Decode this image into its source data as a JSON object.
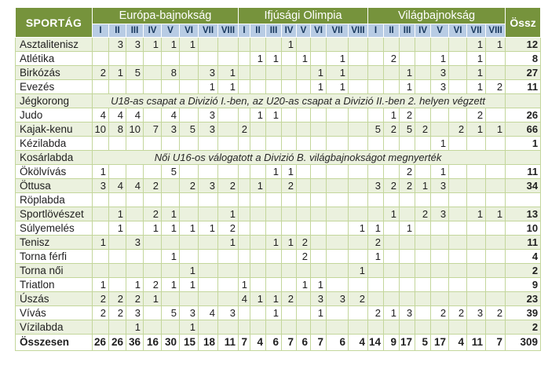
{
  "colors": {
    "header_green": "#76933c",
    "row_light_green": "#ebf1de",
    "row_white": "#ffffff",
    "grid_border": "#c3d69b",
    "subheader_blue": "#b8cce4",
    "subheader_text": "#17375d",
    "header_text": "#ffffff",
    "body_text": "#1f1f1f"
  },
  "table": {
    "title_col_header": "SPORTÁG",
    "total_col_header": "Össz",
    "groups": [
      {
        "label": "Európa-bajnokság",
        "cols": [
          "I",
          "II",
          "III",
          "IV",
          "V",
          "VI",
          "VII",
          "VIII"
        ]
      },
      {
        "label": "Ifjúsági Olimpia",
        "cols": [
          "I",
          "II",
          "III",
          "IV",
          "V",
          "VI",
          "VII",
          "VIII"
        ]
      },
      {
        "label": "Világbajnokság",
        "cols": [
          "I",
          "II",
          "III",
          "IV",
          "V",
          "VI",
          "VII",
          "VIII"
        ]
      }
    ],
    "rows": [
      {
        "sport": "Asztalitenisz",
        "eb": [
          "",
          "3",
          "3",
          "1",
          "1",
          "1",
          "",
          ""
        ],
        "io": [
          "",
          "",
          "",
          "1",
          "",
          "",
          "",
          ""
        ],
        "vb": [
          "",
          "",
          "",
          "",
          "",
          "",
          "1",
          "1"
        ],
        "total": "12"
      },
      {
        "sport": "Atlétika",
        "eb": [
          "",
          "",
          "",
          "",
          "",
          "",
          "",
          ""
        ],
        "io": [
          "",
          "1",
          "1",
          "",
          "1",
          "",
          "1",
          ""
        ],
        "vb": [
          "",
          "2",
          "",
          "",
          "1",
          "",
          "1",
          ""
        ],
        "total": "8"
      },
      {
        "sport": "Birkózás",
        "eb": [
          "2",
          "1",
          "5",
          "",
          "8",
          "",
          "3",
          "1"
        ],
        "io": [
          "",
          "",
          "",
          "",
          "",
          "1",
          "1",
          ""
        ],
        "vb": [
          "",
          "",
          "1",
          "",
          "3",
          "",
          "1",
          ""
        ],
        "total": "27"
      },
      {
        "sport": "Evezés",
        "eb": [
          "",
          "",
          "",
          "",
          "",
          "",
          "1",
          "1"
        ],
        "io": [
          "",
          "",
          "",
          "",
          "",
          "1",
          "1",
          ""
        ],
        "vb": [
          "",
          "",
          "1",
          "",
          "3",
          "",
          "1",
          "2"
        ],
        "total": "11"
      },
      {
        "sport": "Jégkorong",
        "note": "U18-as csapat a Divizió I.-ben, az U20-as csapat a Divizió II.-ben 2. helyen végzett",
        "total": ""
      },
      {
        "sport": "Judo",
        "eb": [
          "4",
          "4",
          "4",
          "",
          "4",
          "",
          "3",
          ""
        ],
        "io": [
          "",
          "1",
          "1",
          "",
          "",
          "",
          "",
          ""
        ],
        "vb": [
          "",
          "1",
          "2",
          "",
          "",
          "",
          "2",
          ""
        ],
        "total": "26"
      },
      {
        "sport": "Kajak-kenu",
        "eb": [
          "10",
          "8",
          "10",
          "7",
          "3",
          "5",
          "3",
          ""
        ],
        "io": [
          "2",
          "",
          "",
          "",
          "",
          "",
          "",
          ""
        ],
        "vb": [
          "5",
          "2",
          "5",
          "2",
          "",
          "2",
          "1",
          "1"
        ],
        "total": "66"
      },
      {
        "sport": "Kézilabda",
        "eb": [
          "",
          "",
          "",
          "",
          "",
          "",
          "",
          ""
        ],
        "io": [
          "",
          "",
          "",
          "",
          "",
          "",
          "",
          ""
        ],
        "vb": [
          "",
          "",
          "",
          "",
          "1",
          "",
          "",
          ""
        ],
        "total": "1"
      },
      {
        "sport": "Kosárlabda",
        "note": "Női U16-os válogatott a Divizió B. világbajnokságot megnyerték",
        "total": ""
      },
      {
        "sport": "Ökölvívás",
        "eb": [
          "1",
          "",
          "",
          "",
          "5",
          "",
          "",
          ""
        ],
        "io": [
          "",
          "",
          "1",
          "1",
          "",
          "",
          "",
          ""
        ],
        "vb": [
          "",
          "",
          "2",
          "",
          "1",
          "",
          "",
          ""
        ],
        "total": "11"
      },
      {
        "sport": "Öttusa",
        "eb": [
          "3",
          "4",
          "4",
          "2",
          "",
          "2",
          "3",
          "2"
        ],
        "io": [
          "",
          "1",
          "",
          "2",
          "",
          "",
          "",
          ""
        ],
        "vb": [
          "3",
          "2",
          "2",
          "1",
          "3",
          "",
          "",
          ""
        ],
        "total": "34"
      },
      {
        "sport": "Röplabda",
        "eb": [
          "",
          "",
          "",
          "",
          "",
          "",
          "",
          ""
        ],
        "io": [
          "",
          "",
          "",
          "",
          "",
          "",
          "",
          ""
        ],
        "vb": [
          "",
          "",
          "",
          "",
          "",
          "",
          "",
          ""
        ],
        "total": ""
      },
      {
        "sport": "Sportlövészet",
        "eb": [
          "",
          "1",
          "",
          "2",
          "1",
          "",
          "",
          "1"
        ],
        "io": [
          "",
          "",
          "",
          "",
          "",
          "",
          "",
          ""
        ],
        "vb": [
          "",
          "1",
          "",
          "2",
          "3",
          "",
          "1",
          "1"
        ],
        "total": "13"
      },
      {
        "sport": "Súlyemelés",
        "eb": [
          "",
          "1",
          "",
          "1",
          "1",
          "1",
          "1",
          "2"
        ],
        "io": [
          "",
          "",
          "",
          "",
          "",
          "",
          "",
          "1"
        ],
        "vb": [
          "1",
          "",
          "1",
          "",
          "",
          "",
          "",
          ""
        ],
        "total": "10"
      },
      {
        "sport": "Tenisz",
        "eb": [
          "1",
          "",
          "3",
          "",
          "",
          "",
          "",
          "1"
        ],
        "io": [
          "",
          "",
          "1",
          "1",
          "2",
          "",
          "",
          ""
        ],
        "vb": [
          "2",
          "",
          "",
          "",
          "",
          "",
          "",
          ""
        ],
        "total": "11"
      },
      {
        "sport": "Torna férfi",
        "eb": [
          "",
          "",
          "",
          "",
          "1",
          "",
          "",
          ""
        ],
        "io": [
          "",
          "",
          "",
          "",
          "2",
          "",
          "",
          ""
        ],
        "vb": [
          "1",
          "",
          "",
          "",
          "",
          "",
          "",
          ""
        ],
        "total": "4"
      },
      {
        "sport": "Torna női",
        "eb": [
          "",
          "",
          "",
          "",
          "",
          "1",
          "",
          ""
        ],
        "io": [
          "",
          "",
          "",
          "",
          "",
          "",
          "",
          "1"
        ],
        "vb": [
          "",
          "",
          "",
          "",
          "",
          "",
          "",
          ""
        ],
        "total": "2"
      },
      {
        "sport": "Triatlon",
        "eb": [
          "1",
          "",
          "1",
          "2",
          "1",
          "1",
          "",
          ""
        ],
        "io": [
          "1",
          "",
          "",
          "",
          "1",
          "1",
          "",
          ""
        ],
        "vb": [
          "",
          "",
          "",
          "",
          "",
          "",
          "",
          ""
        ],
        "total": "9"
      },
      {
        "sport": "Úszás",
        "eb": [
          "2",
          "2",
          "2",
          "1",
          "",
          "",
          "",
          ""
        ],
        "io": [
          "4",
          "1",
          "1",
          "2",
          "",
          "3",
          "3",
          "2"
        ],
        "vb": [
          "",
          "",
          "",
          "",
          "",
          "",
          "",
          ""
        ],
        "total": "23"
      },
      {
        "sport": "Vívás",
        "eb": [
          "2",
          "2",
          "3",
          "",
          "5",
          "3",
          "4",
          "3"
        ],
        "io": [
          "",
          "",
          "1",
          "",
          "",
          "1",
          "",
          ""
        ],
        "vb": [
          "2",
          "1",
          "3",
          "",
          "2",
          "2",
          "3",
          "2"
        ],
        "total": "39"
      },
      {
        "sport": "Vízilabda",
        "eb": [
          "",
          "",
          "1",
          "",
          "",
          "1",
          "",
          ""
        ],
        "io": [
          "",
          "",
          "",
          "",
          "",
          "",
          "",
          ""
        ],
        "vb": [
          "",
          "",
          "",
          "",
          "",
          "",
          "",
          ""
        ],
        "total": "2"
      }
    ],
    "totals_row": {
      "sport": "Összesen",
      "eb": [
        "26",
        "26",
        "36",
        "16",
        "30",
        "15",
        "18",
        "11"
      ],
      "io": [
        "7",
        "4",
        "6",
        "7",
        "6",
        "7",
        "6",
        "4"
      ],
      "vb": [
        "14",
        "9",
        "17",
        "5",
        "17",
        "4",
        "11",
        "7"
      ],
      "total": "309"
    }
  }
}
